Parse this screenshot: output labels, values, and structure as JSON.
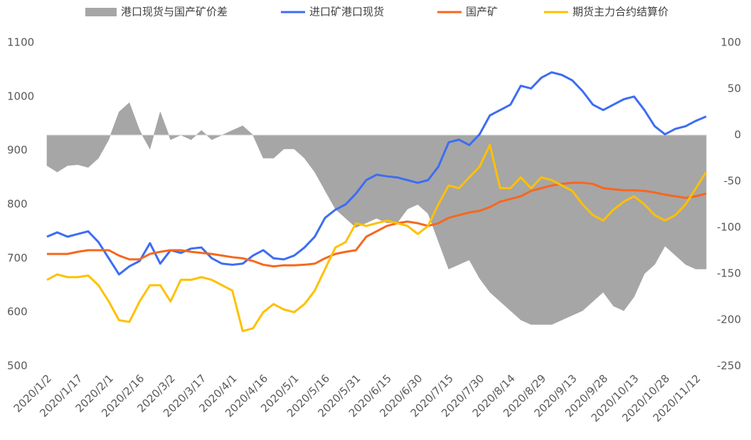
{
  "chart_data": {
    "type": "line",
    "categories": [
      "2020/1/2",
      null,
      null,
      "2020/1/17",
      null,
      null,
      "2020/2/1",
      null,
      null,
      "2020/2/16",
      null,
      null,
      "2020/3/2",
      null,
      null,
      "2020/3/17",
      null,
      null,
      "2020/4/1",
      null,
      null,
      "2020/4/16",
      null,
      null,
      "2020/5/1",
      null,
      null,
      "2020/5/16",
      null,
      null,
      "2020/5/31",
      null,
      null,
      "2020/6/15",
      null,
      null,
      "2020/6/30",
      null,
      null,
      "2020/7/15",
      null,
      null,
      "2020/7/30",
      null,
      null,
      "2020/8/14",
      null,
      null,
      "2020/8/29",
      null,
      null,
      "2020/9/13",
      null,
      null,
      "2020/9/28",
      null,
      null,
      "2020/10/13",
      null,
      null,
      "2020/10/28",
      null,
      null,
      "2020/11/12",
      null
    ],
    "series": [
      {
        "name": "港口现货与国产矿价差",
        "type": "area",
        "axis": "y2",
        "color": "#a6a6a6",
        "values": [
          -33,
          -40,
          -33,
          -32,
          -35,
          -25,
          -5,
          25,
          35,
          5,
          -15,
          25,
          -5,
          0,
          -5,
          5,
          -5,
          0,
          5,
          10,
          0,
          -25,
          -25,
          -15,
          -15,
          -25,
          -40,
          -60,
          -80,
          -90,
          -100,
          -95,
          -90,
          -95,
          -95,
          -80,
          -75,
          -85,
          -115,
          -145,
          -140,
          -135,
          -155,
          -170,
          -180,
          -190,
          -200,
          -205,
          -205,
          -205,
          -200,
          -195,
          -190,
          -180,
          -170,
          -185,
          -190,
          -175,
          -150,
          -140,
          -120,
          -130,
          -140,
          -145,
          -145
        ]
      },
      {
        "name": "进口矿港口现货",
        "color": "#3d6df2",
        "values": [
          740,
          748,
          740,
          745,
          750,
          730,
          700,
          670,
          685,
          695,
          728,
          690,
          715,
          710,
          718,
          720,
          700,
          690,
          688,
          690,
          705,
          715,
          700,
          698,
          705,
          720,
          740,
          775,
          790,
          800,
          820,
          845,
          855,
          852,
          850,
          845,
          840,
          845,
          870,
          915,
          920,
          910,
          930,
          965,
          975,
          985,
          1020,
          1015,
          1035,
          1045,
          1040,
          1030,
          1010,
          985,
          975,
          985,
          995,
          1000,
          975,
          945,
          930,
          940,
          945,
          955,
          963
        ]
      },
      {
        "name": "国产矿",
        "color": "#f7671e",
        "values": [
          708,
          708,
          708,
          712,
          715,
          715,
          715,
          705,
          698,
          698,
          708,
          712,
          715,
          715,
          712,
          710,
          708,
          705,
          702,
          700,
          695,
          688,
          685,
          687,
          687,
          688,
          690,
          700,
          708,
          712,
          715,
          740,
          750,
          760,
          765,
          768,
          765,
          760,
          765,
          775,
          780,
          785,
          788,
          795,
          805,
          810,
          815,
          825,
          830,
          835,
          838,
          840,
          840,
          838,
          830,
          828,
          826,
          826,
          825,
          822,
          818,
          815,
          812,
          815,
          820
        ]
      },
      {
        "name": "期货主力合约结算价",
        "color": "#ffc000",
        "values": [
          660,
          670,
          665,
          665,
          668,
          650,
          620,
          585,
          582,
          620,
          650,
          650,
          620,
          660,
          660,
          665,
          660,
          650,
          640,
          565,
          570,
          600,
          615,
          605,
          600,
          615,
          640,
          680,
          720,
          730,
          765,
          760,
          765,
          770,
          765,
          760,
          745,
          760,
          800,
          835,
          830,
          850,
          870,
          910,
          830,
          830,
          850,
          830,
          850,
          845,
          835,
          825,
          800,
          780,
          770,
          790,
          805,
          815,
          800,
          780,
          770,
          780,
          800,
          830,
          860
        ]
      }
    ],
    "ylim": [
      500,
      1100
    ],
    "yticks": [
      500,
      600,
      700,
      800,
      900,
      1000,
      1100
    ],
    "y2lim": [
      -250,
      100
    ],
    "y2ticks": [
      -250,
      -200,
      -150,
      -100,
      -50,
      0,
      50,
      100
    ]
  }
}
